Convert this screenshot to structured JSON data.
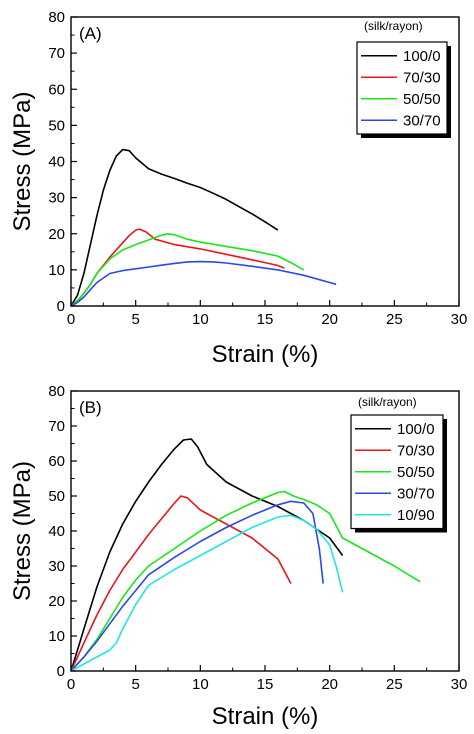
{
  "chart_data": [
    {
      "type": "line",
      "panel_label": "(A)",
      "xlabel": "Strain (%)",
      "ylabel": "Stress (MPa)",
      "xlim": [
        0,
        30
      ],
      "ylim": [
        0,
        80
      ],
      "xticks": [
        0,
        5,
        10,
        15,
        20,
        25,
        30
      ],
      "yticks": [
        0,
        10,
        20,
        30,
        40,
        50,
        60,
        70,
        80
      ],
      "legend_title": "(silk/rayon)",
      "legend_position": "top-right",
      "series": [
        {
          "name": "100/0",
          "color": "#000000",
          "x": [
            0,
            0.5,
            1,
            1.5,
            2,
            2.5,
            3,
            3.5,
            4,
            4.5,
            5,
            6,
            7,
            8,
            9,
            10,
            11,
            12,
            13,
            14,
            15,
            16
          ],
          "y": [
            0,
            3,
            9,
            17,
            25,
            32,
            37.5,
            41.5,
            43.3,
            43,
            41,
            38,
            36.5,
            35.3,
            34,
            32.8,
            31.2,
            29.5,
            27.5,
            25.5,
            23.3,
            21
          ]
        },
        {
          "name": "70/30",
          "color": "#e8161e",
          "x": [
            0,
            0.5,
            1,
            1.5,
            2,
            3,
            4,
            4.5,
            5,
            5.3,
            5.8,
            6.5,
            8,
            10,
            12,
            14,
            16,
            16.5
          ],
          "y": [
            0,
            1.5,
            3.5,
            6,
            9,
            13.5,
            17.5,
            19.5,
            21,
            21.3,
            20.5,
            18.5,
            17,
            15.8,
            14.3,
            12.8,
            11.2,
            10.5
          ]
        },
        {
          "name": "50/50",
          "color": "#19e619",
          "x": [
            0,
            0.5,
            1,
            1.5,
            2,
            3,
            4,
            5,
            6,
            7,
            7.5,
            8,
            9,
            10,
            12,
            14,
            16,
            17,
            18
          ],
          "y": [
            0,
            1.5,
            3.5,
            6,
            9,
            13,
            15.5,
            17,
            18.3,
            19.6,
            20,
            19.7,
            18.5,
            17.7,
            16.5,
            15.3,
            13.8,
            12,
            10
          ]
        },
        {
          "name": "30/70",
          "color": "#2a48e6",
          "x": [
            0,
            0.5,
            1,
            1.5,
            2,
            3,
            4,
            5,
            6,
            7,
            8,
            9,
            10,
            11,
            12,
            14,
            16,
            18,
            20,
            20.5
          ],
          "y": [
            0,
            1,
            2.5,
            4.5,
            6.5,
            9,
            9.8,
            10.3,
            10.8,
            11.3,
            11.8,
            12.2,
            12.3,
            12.2,
            11.9,
            11,
            10,
            8.5,
            6.5,
            6
          ]
        }
      ]
    },
    {
      "type": "line",
      "panel_label": "(B)",
      "xlabel": "Strain (%)",
      "ylabel": "Stress (MPa)",
      "xlim": [
        0,
        30
      ],
      "ylim": [
        0,
        80
      ],
      "xticks": [
        0,
        5,
        10,
        15,
        20,
        25,
        30
      ],
      "yticks": [
        0,
        10,
        20,
        30,
        40,
        50,
        60,
        70,
        80
      ],
      "legend_title": "(silk/rayon)",
      "legend_position": "top-right",
      "series": [
        {
          "name": "100/0",
          "color": "#000000",
          "x": [
            0,
            0.5,
            1,
            1.5,
            2,
            3,
            4,
            5,
            6,
            7,
            8,
            8.7,
            9.3,
            9.8,
            10.5,
            12,
            14,
            16,
            18,
            20,
            21
          ],
          "y": [
            0,
            6,
            12,
            18,
            24,
            34,
            42,
            48.5,
            54,
            59,
            63.5,
            66,
            66.3,
            64,
            59,
            54,
            50,
            47,
            43,
            38,
            33
          ]
        },
        {
          "name": "70/30",
          "color": "#e8161e",
          "x": [
            0,
            0.5,
            1,
            1.5,
            2,
            3,
            4,
            5,
            6,
            7,
            8,
            8.5,
            9,
            10,
            12,
            14,
            16,
            17
          ],
          "y": [
            0,
            4,
            8,
            12,
            16,
            23,
            29,
            34,
            39,
            43.5,
            48,
            50,
            49.5,
            46,
            42,
            38,
            32,
            25
          ]
        },
        {
          "name": "50/50",
          "color": "#19e619",
          "x": [
            0,
            1,
            2,
            3,
            4,
            5,
            6,
            8,
            10,
            12,
            14,
            16,
            16.5,
            17.2,
            18,
            19,
            20,
            21,
            23,
            25,
            27
          ],
          "y": [
            0,
            4,
            9,
            15,
            21,
            26,
            30,
            35,
            40,
            44.5,
            48,
            51,
            51.3,
            50,
            49,
            47.5,
            45,
            38,
            34,
            30,
            25.5
          ]
        },
        {
          "name": "30/70",
          "color": "#2a48e6",
          "x": [
            0,
            1,
            2,
            3,
            4,
            5,
            6,
            8,
            10,
            12,
            14,
            16,
            17,
            18,
            18.7,
            19.2,
            19.5
          ],
          "y": [
            0,
            4,
            8.5,
            13.5,
            18.5,
            23,
            27.5,
            32.5,
            37,
            41,
            44.5,
            47.5,
            48.5,
            48,
            45,
            35,
            25
          ]
        },
        {
          "name": "10/90",
          "color": "#22e6e0",
          "x": [
            0,
            1,
            2,
            3,
            3.5,
            4,
            5,
            6,
            8,
            10,
            12,
            14,
            16,
            17,
            18,
            19,
            20,
            20.5,
            21
          ],
          "y": [
            0,
            2,
            4,
            6,
            8,
            12,
            19,
            24.5,
            29,
            33,
            37,
            41,
            44,
            44.5,
            43,
            40.5,
            36,
            30,
            22.5
          ]
        }
      ]
    }
  ]
}
